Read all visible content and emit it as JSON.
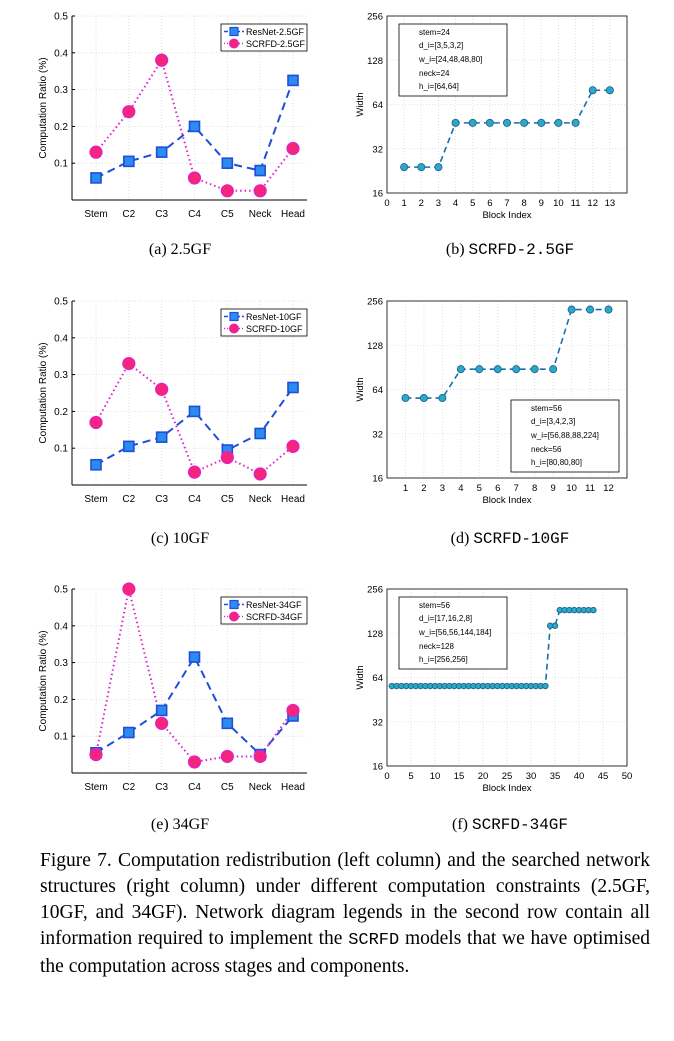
{
  "colors": {
    "blue": "#1f4fd6",
    "magenta": "#e01fcf",
    "marker_teal": "#2aa7c9",
    "marker_green": "#4bab7d",
    "grid": "#d9d9d9"
  },
  "panels": [
    {
      "id": "a",
      "label": "(a)",
      "label_text": "2.5GF",
      "mono": false
    },
    {
      "id": "b",
      "label": "(b)",
      "label_text": "SCRFD-2.5GF",
      "mono": true
    },
    {
      "id": "c",
      "label": "(c)",
      "label_text": "10GF",
      "mono": false
    },
    {
      "id": "d",
      "label": "(d)",
      "label_text": "SCRFD-10GF",
      "mono": true
    },
    {
      "id": "e",
      "label": "(e)",
      "label_text": "34GF",
      "mono": false
    },
    {
      "id": "f",
      "label": "(f)",
      "label_text": "SCRFD-34GF",
      "mono": true
    }
  ],
  "caption": {
    "part1": "Figure 7. Computation redistribution (left column) and the searched network structures (right column) under different computation constraints (2.5GF, 10GF, and 34GF). Network diagram legends in the second row contain all information required to implement the ",
    "mono": "SCRFD",
    "part2": " models that we have optimised the computation across stages and components."
  },
  "chart_data": [
    {
      "id": "a",
      "type": "line",
      "title": "",
      "xlabel": "",
      "ylabel": "Computation Ratio (%)",
      "categories": [
        "Stem",
        "C2",
        "C3",
        "C4",
        "C5",
        "Neck",
        "Head"
      ],
      "ylim": [
        0,
        0.5
      ],
      "yticks": [
        "0.1",
        "0.2",
        "0.3",
        "0.4",
        "0.5"
      ],
      "grid": true,
      "legend": "top-right",
      "series": [
        {
          "name": "ResNet-2.5GF",
          "values": [
            0.06,
            0.105,
            0.13,
            0.2,
            0.1,
            0.08,
            0.325
          ]
        },
        {
          "name": "SCRFD-2.5GF",
          "values": [
            0.13,
            0.24,
            0.38,
            0.06,
            0.025,
            0.025,
            0.14
          ]
        }
      ]
    },
    {
      "id": "b",
      "type": "line",
      "xlabel": "Block Index",
      "ylabel": "Width",
      "yscale": "log2",
      "ylim": [
        16,
        256
      ],
      "yticks": [
        "16",
        "32",
        "64",
        "128",
        "256"
      ],
      "xlim": [
        0,
        14
      ],
      "xticks": [
        "0",
        "1",
        "2",
        "3",
        "4",
        "5",
        "6",
        "7",
        "8",
        "9",
        "10",
        "11",
        "12",
        "13"
      ],
      "x": [
        1,
        2,
        3,
        4,
        5,
        6,
        7,
        8,
        9,
        10,
        11,
        12,
        13
      ],
      "values": [
        24,
        24,
        24,
        48,
        48,
        48,
        48,
        48,
        48,
        48,
        48,
        80,
        80
      ],
      "legend": "top-left",
      "legend_lines": [
        "stem=24",
        "d_i=[3,5,3,2]",
        "w_i=[24,48,48,80]",
        "neck=24",
        "h_i=[64,64]"
      ]
    },
    {
      "id": "c",
      "type": "line",
      "ylabel": "Computation Ratio (%)",
      "categories": [
        "Stem",
        "C2",
        "C3",
        "C4",
        "C5",
        "Neck",
        "Head"
      ],
      "ylim": [
        0,
        0.5
      ],
      "yticks": [
        "0.1",
        "0.2",
        "0.3",
        "0.4",
        "0.5"
      ],
      "grid": true,
      "legend": "top-right",
      "series": [
        {
          "name": "ResNet-10GF",
          "values": [
            0.055,
            0.105,
            0.13,
            0.2,
            0.095,
            0.14,
            0.265
          ]
        },
        {
          "name": "SCRFD-10GF",
          "values": [
            0.17,
            0.33,
            0.26,
            0.035,
            0.075,
            0.03,
            0.105
          ]
        }
      ]
    },
    {
      "id": "d",
      "type": "line",
      "xlabel": "Block Index",
      "ylabel": "Width",
      "yscale": "log2",
      "ylim": [
        16,
        256
      ],
      "yticks": [
        "16",
        "32",
        "64",
        "128",
        "256"
      ],
      "xlim": [
        0,
        13
      ],
      "xticks": [
        "1",
        "2",
        "3",
        "4",
        "5",
        "6",
        "7",
        "8",
        "9",
        "10",
        "11",
        "12"
      ],
      "x": [
        1,
        2,
        3,
        4,
        5,
        6,
        7,
        8,
        9,
        10,
        11,
        12
      ],
      "values": [
        56,
        56,
        56,
        88,
        88,
        88,
        88,
        88,
        88,
        224,
        224,
        224
      ],
      "legend": "bottom-right",
      "legend_lines": [
        "stem=56",
        "d_i=[3,4,2,3]",
        "w_i=[56,88,88,224]",
        "neck=56",
        "h_i=[80,80,80]"
      ]
    },
    {
      "id": "e",
      "type": "line",
      "ylabel": "Computation Ratio (%)",
      "categories": [
        "Stem",
        "C2",
        "C3",
        "C4",
        "C5",
        "Neck",
        "Head"
      ],
      "ylim": [
        0,
        0.5
      ],
      "yticks": [
        "0.1",
        "0.2",
        "0.3",
        "0.4",
        "0.5"
      ],
      "grid": true,
      "legend": "top-right",
      "series": [
        {
          "name": "ResNet-34GF",
          "values": [
            0.055,
            0.11,
            0.17,
            0.315,
            0.135,
            0.05,
            0.155
          ]
        },
        {
          "name": "SCRFD-34GF",
          "values": [
            0.05,
            0.5,
            0.135,
            0.03,
            0.045,
            0.045,
            0.17
          ]
        }
      ]
    },
    {
      "id": "f",
      "type": "line",
      "xlabel": "Block Index",
      "ylabel": "Width",
      "yscale": "log2",
      "ylim": [
        16,
        256
      ],
      "yticks": [
        "16",
        "32",
        "64",
        "128",
        "256"
      ],
      "xlim": [
        0,
        50
      ],
      "xticks": [
        "0",
        "5",
        "10",
        "15",
        "20",
        "25",
        "30",
        "35",
        "40",
        "45",
        "50"
      ],
      "x": [
        1,
        2,
        3,
        4,
        5,
        6,
        7,
        8,
        9,
        10,
        11,
        12,
        13,
        14,
        15,
        16,
        17,
        18,
        19,
        20,
        21,
        22,
        23,
        24,
        25,
        26,
        27,
        28,
        29,
        30,
        31,
        32,
        33,
        34,
        35,
        36,
        37,
        38,
        39,
        40,
        41,
        42,
        43
      ],
      "values": [
        56,
        56,
        56,
        56,
        56,
        56,
        56,
        56,
        56,
        56,
        56,
        56,
        56,
        56,
        56,
        56,
        56,
        56,
        56,
        56,
        56,
        56,
        56,
        56,
        56,
        56,
        56,
        56,
        56,
        56,
        56,
        56,
        56,
        144,
        144,
        184,
        184,
        184,
        184,
        184,
        184,
        184,
        184
      ],
      "legend": "top-left",
      "legend_lines": [
        "stem=56",
        "d_i=[17,16,2,8]",
        "w_i=[56,56,144,184]",
        "neck=128",
        "h_i=[256,256]"
      ]
    }
  ]
}
